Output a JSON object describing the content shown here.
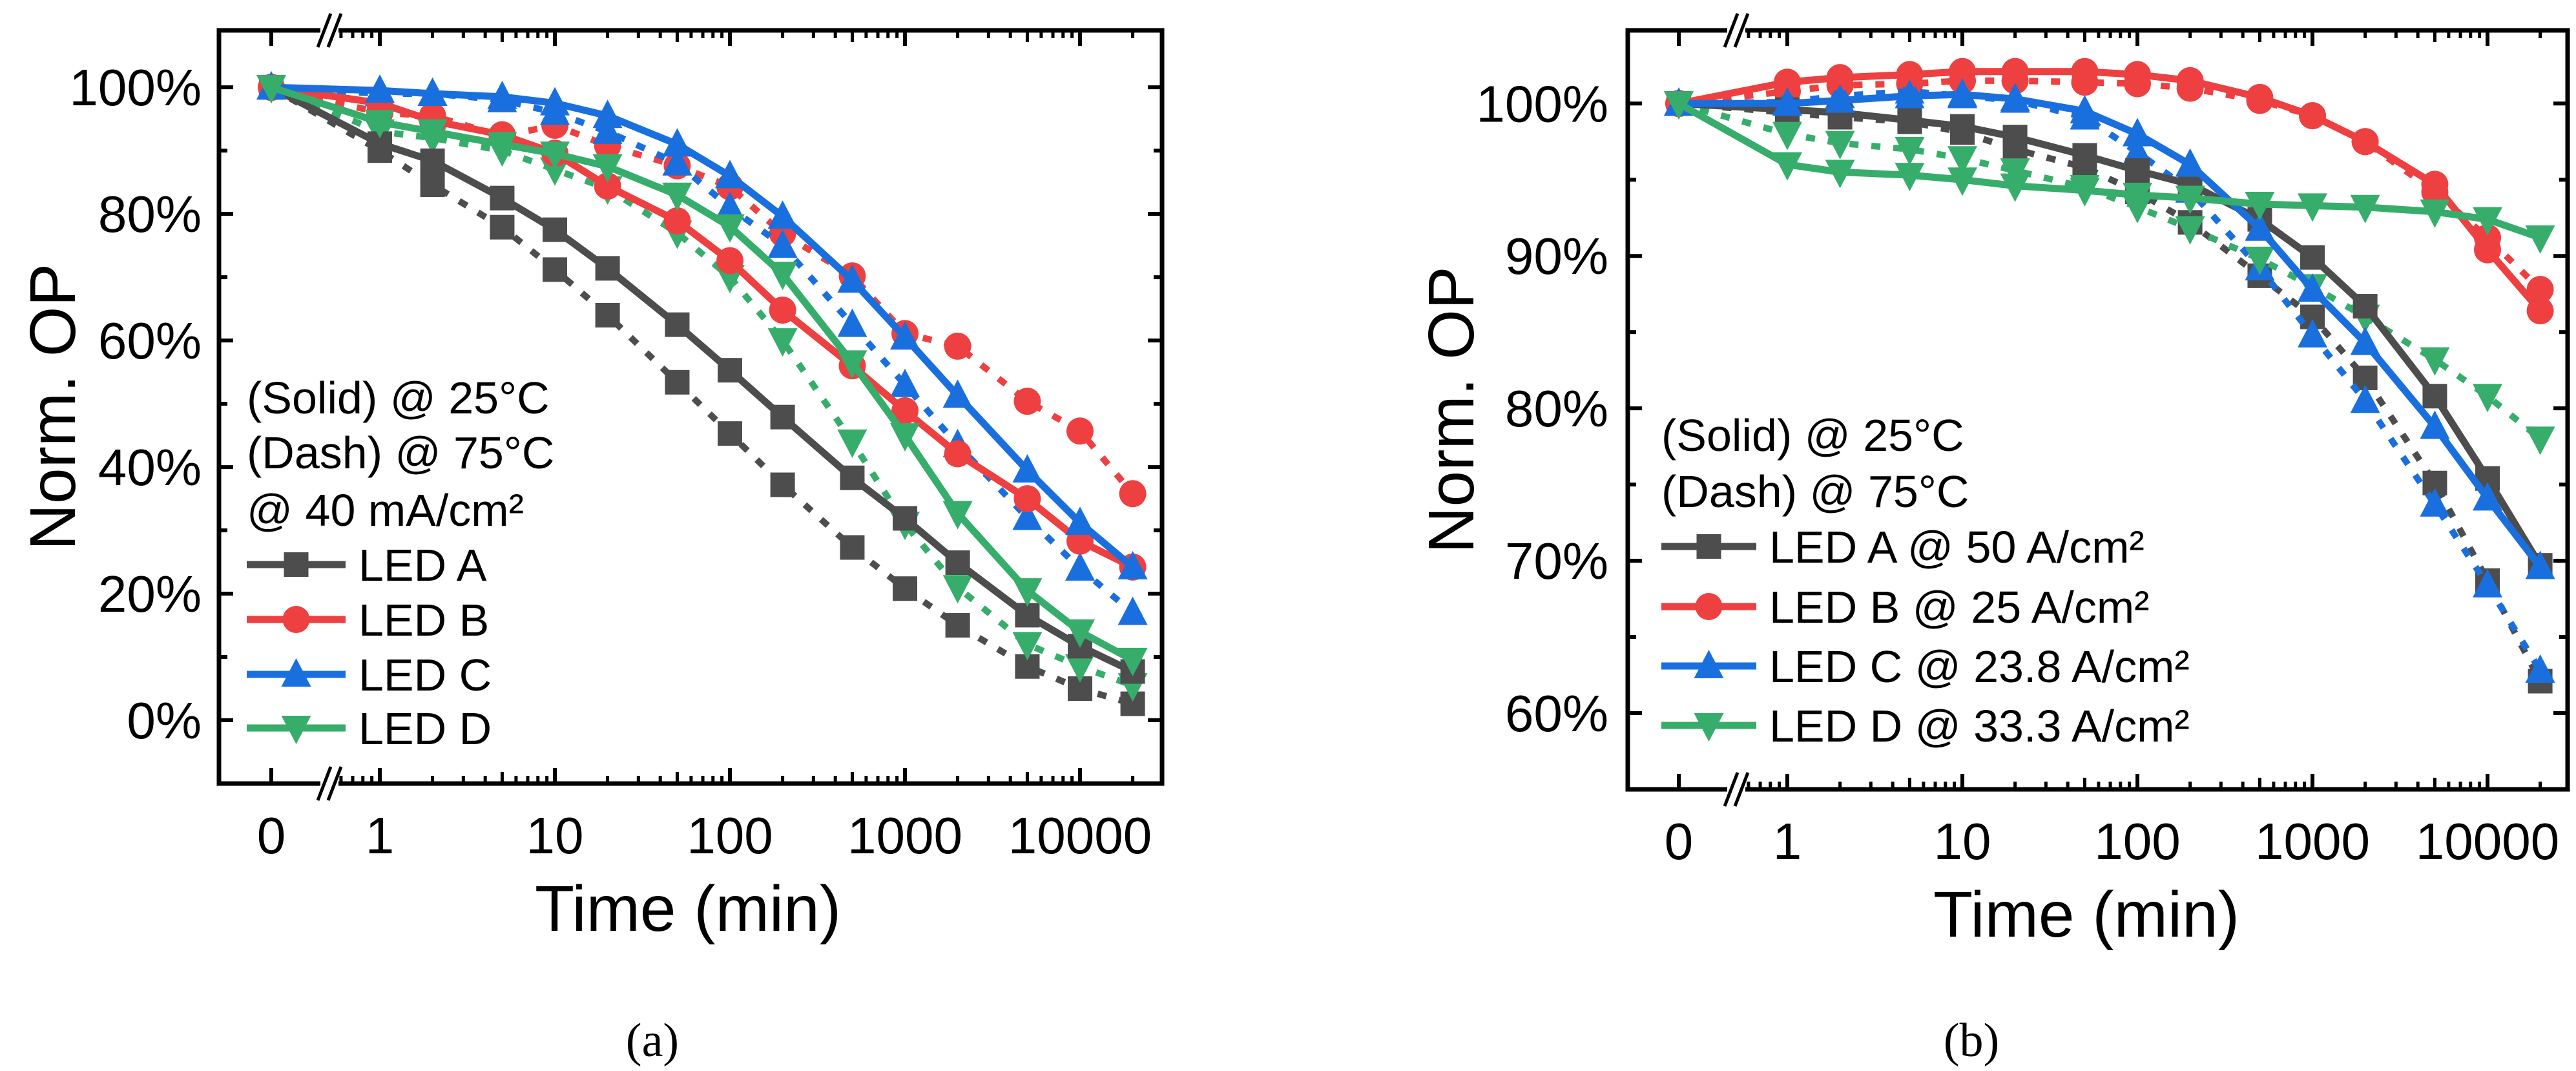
{
  "colors": {
    "A": "#4d4d4d",
    "B": "#ee4040",
    "C": "#1a6fdf",
    "D": "#37ad6b"
  },
  "chart_data": [
    {
      "type": "line",
      "panel_label": "(a)",
      "xlabel": "Time (min)",
      "ylabel": "Norm. OP",
      "x_scale": "log with broken axis (0 shown before break)",
      "x": [
        0,
        1,
        2,
        5,
        10,
        20,
        50,
        100,
        200,
        500,
        1000,
        2000,
        5000,
        10000,
        20000
      ],
      "xticks": [
        "0",
        "1",
        "10",
        "100",
        "1000",
        "10000"
      ],
      "ylim": [
        -10,
        109
      ],
      "yticks": [
        0,
        20,
        40,
        60,
        80,
        100
      ],
      "ytick_labels": [
        "0%",
        "20%",
        "40%",
        "60%",
        "80%",
        "100%"
      ],
      "legend_notes": [
        "(Solid) @ 25°C",
        "(Dash) @ 75°C",
        "@ 40 mA/cm²"
      ],
      "legend": [
        "LED A",
        "LED B",
        "LED C",
        "LED D"
      ],
      "legend_placement": "lower-left",
      "series": [
        {
          "name": "LED A",
          "led": "A",
          "style": "solid",
          "temperature": "25°C",
          "marker": "square",
          "values": [
            100,
            91.1,
            88.4,
            82.5,
            77.5,
            71.4,
            62.5,
            55.3,
            47.9,
            38.3,
            31.9,
            24.9,
            16.6,
            11.7,
            7.7
          ]
        },
        {
          "name": "LED A",
          "led": "A",
          "style": "dash",
          "temperature": "75°C",
          "marker": "square",
          "values": [
            100,
            90,
            84.6,
            77.9,
            71.2,
            64,
            53.4,
            45.3,
            37.2,
            27.3,
            20.8,
            15,
            8.5,
            5,
            2.6
          ]
        },
        {
          "name": "LED B",
          "led": "B",
          "style": "solid",
          "temperature": "25°C",
          "marker": "circle",
          "values": [
            100,
            97.5,
            94.7,
            92.5,
            89.6,
            84.4,
            78.9,
            72.6,
            64.8,
            56,
            48.9,
            42.1,
            35,
            28.3,
            24.2
          ]
        },
        {
          "name": "LED B",
          "led": "B",
          "style": "dash",
          "temperature": "75°C",
          "marker": "circle",
          "values": [
            100,
            96,
            95.5,
            92.3,
            94,
            90.8,
            87.6,
            84.3,
            76.9,
            70.2,
            61.1,
            59.1,
            50.4,
            45.7,
            35.8
          ]
        },
        {
          "name": "LED C",
          "led": "C",
          "style": "solid",
          "temperature": "25°C",
          "marker": "triangle-up",
          "values": [
            100,
            99.5,
            99,
            98.5,
            97.5,
            95.5,
            91,
            86,
            79.6,
            69.5,
            60.5,
            51.3,
            39.5,
            31.2,
            24.2
          ]
        },
        {
          "name": "LED C",
          "led": "C",
          "style": "dash",
          "temperature": "75°C",
          "marker": "triangle-up",
          "values": [
            100,
            99,
            99,
            98,
            96,
            93,
            88,
            81,
            75,
            62.5,
            53,
            43.5,
            32,
            24,
            17
          ]
        },
        {
          "name": "LED D",
          "led": "D",
          "style": "solid",
          "temperature": "25°C",
          "marker": "triangle-down",
          "values": [
            100,
            94.5,
            93,
            91,
            89.5,
            87.5,
            83,
            78,
            70.5,
            56.5,
            45,
            32.7,
            20.5,
            14,
            9.5
          ]
        },
        {
          "name": "LED D",
          "led": "D",
          "style": "dash",
          "temperature": "75°C",
          "marker": "triangle-down",
          "values": [
            100,
            93,
            92,
            90,
            87,
            84,
            77,
            70,
            60,
            44,
            31,
            21,
            12,
            8.5,
            5.5
          ]
        }
      ]
    },
    {
      "type": "line",
      "panel_label": "(b)",
      "xlabel": "Time (min)",
      "ylabel": "Norm. OP",
      "x_scale": "log with broken axis (0 shown before break)",
      "x": [
        0,
        1,
        2,
        5,
        10,
        20,
        50,
        100,
        200,
        500,
        1000,
        2000,
        5000,
        10000,
        20000
      ],
      "xticks": [
        "0",
        "1",
        "10",
        "100",
        "1000",
        "10000"
      ],
      "ylim": [
        55,
        104.8
      ],
      "yticks": [
        60,
        70,
        80,
        90,
        100
      ],
      "ytick_labels": [
        "60%",
        "70%",
        "80%",
        "90%",
        "100%"
      ],
      "legend_notes": [
        "(Solid) @ 25°C",
        "(Dash) @ 75°C"
      ],
      "legend": [
        "LED A @ 50 A/cm²",
        "LED B @ 25 A/cm²",
        "LED C @ 23.8 A/cm²",
        "LED D @ 33.3 A/cm²"
      ],
      "legend_placement": "lower-left",
      "series": [
        {
          "name": "LED A",
          "led": "A",
          "style": "solid",
          "temperature": "25°C",
          "marker": "square",
          "values": [
            100,
            99.6,
            99.4,
            98.9,
            98.5,
            97.8,
            96.6,
            95.6,
            94.7,
            92.4,
            89.9,
            86.7,
            80.8,
            75.4,
            69.7
          ]
        },
        {
          "name": "LED A",
          "led": "A",
          "style": "dash",
          "temperature": "75°C",
          "marker": "square",
          "values": [
            100,
            99.4,
            99.1,
            98.8,
            98.1,
            97,
            95.8,
            94.2,
            92.2,
            88.7,
            86,
            82,
            75.1,
            68.7,
            62.1
          ]
        },
        {
          "name": "LED B",
          "led": "B",
          "style": "solid",
          "temperature": "25°C",
          "marker": "circle",
          "values": [
            100,
            101.4,
            101.7,
            101.9,
            102.1,
            102.1,
            102.1,
            101.9,
            101.5,
            100.4,
            99.2,
            97.5,
            94.7,
            90.4,
            86.4
          ]
        },
        {
          "name": "LED B",
          "led": "B",
          "style": "dash",
          "temperature": "75°C",
          "marker": "circle",
          "values": [
            100,
            100.8,
            101.2,
            101.3,
            101.5,
            101.5,
            101.4,
            101.3,
            101,
            100.2,
            99.2,
            97.5,
            94.2,
            91.2,
            87.8
          ]
        },
        {
          "name": "LED C",
          "led": "C",
          "style": "solid",
          "temperature": "25°C",
          "marker": "triangle-up",
          "values": [
            100,
            100,
            100.2,
            100.5,
            100.6,
            100.3,
            99.5,
            98,
            96,
            91.8,
            87.8,
            84.3,
            78.8,
            74.1,
            69.6
          ]
        },
        {
          "name": "LED C",
          "led": "C",
          "style": "dash",
          "temperature": "75°C",
          "marker": "triangle-up",
          "values": [
            100,
            100.1,
            100.5,
            100.8,
            100.5,
            100.2,
            99.1,
            96.8,
            94.3,
            89.2,
            84.8,
            80.5,
            73.7,
            68.4,
            62.8
          ]
        },
        {
          "name": "LED D",
          "led": "D",
          "style": "solid",
          "temperature": "25°C",
          "marker": "triangle-down",
          "values": [
            100,
            96,
            95.5,
            95.3,
            95,
            94.6,
            94.3,
            94,
            93.8,
            93.4,
            93.3,
            93.2,
            92.9,
            92.4,
            91.2
          ]
        },
        {
          "name": "LED D",
          "led": "D",
          "style": "dash",
          "temperature": "75°C",
          "marker": "triangle-down",
          "values": [
            100,
            98,
            97.4,
            97,
            96.4,
            95.6,
            94.5,
            93.2,
            91.8,
            89.8,
            88,
            86,
            83.2,
            80.8,
            78
          ]
        }
      ]
    }
  ]
}
